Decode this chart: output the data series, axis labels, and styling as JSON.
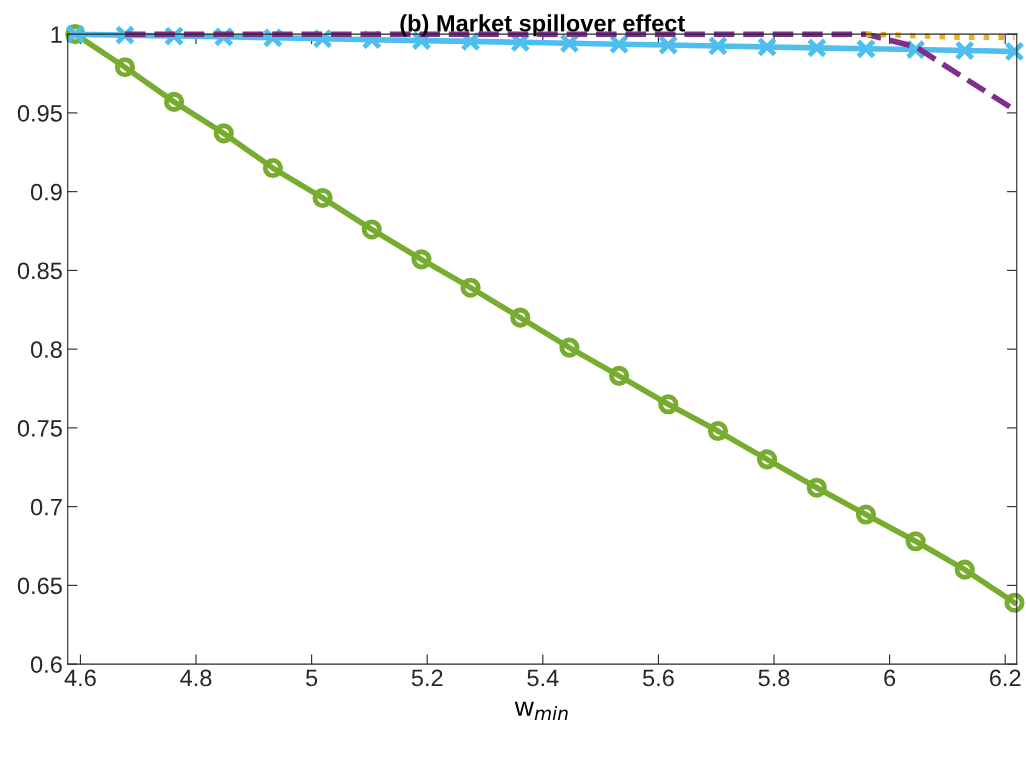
{
  "chart_data": {
    "type": "line",
    "title": "(b) Market spillover effect",
    "xlabel": "w$_{min}$",
    "x": [
      4.591,
      4.677,
      4.762,
      4.848,
      4.933,
      5.019,
      5.104,
      5.19,
      5.275,
      5.361,
      5.446,
      5.532,
      5.617,
      5.703,
      5.788,
      5.874,
      5.959,
      6.045,
      6.13,
      6.216
    ],
    "series": [
      {
        "color": "#77ac30",
        "line_style": "solid",
        "marker": "circle",
        "values": [
          1.0,
          0.979,
          0.957,
          0.937,
          0.915,
          0.896,
          0.876,
          0.857,
          0.839,
          0.82,
          0.801,
          0.783,
          0.765,
          0.748,
          0.73,
          0.712,
          0.695,
          0.678,
          0.66,
          0.639
        ]
      },
      {
        "color": "#4dbeee",
        "line_style": "solid",
        "marker": "cross",
        "values": [
          1.0,
          0.9994,
          0.9988,
          0.9983,
          0.9977,
          0.9971,
          0.9965,
          0.9959,
          0.9954,
          0.9948,
          0.9942,
          0.9936,
          0.9931,
          0.9925,
          0.9919,
          0.9913,
          0.9907,
          0.9902,
          0.9896,
          0.989
        ]
      },
      {
        "color": "#7e2f8e",
        "line_style": "dashed",
        "marker": "none",
        "values": [
          null,
          1,
          1,
          1,
          1,
          1,
          1,
          1,
          1,
          1,
          1,
          1,
          1,
          1,
          1,
          1,
          1,
          0.992,
          0.972,
          0.952
        ]
      },
      {
        "color": "#edb120",
        "line_style": "dotted",
        "marker": "none",
        "values": [
          null,
          null,
          null,
          null,
          null,
          null,
          null,
          null,
          null,
          null,
          null,
          null,
          null,
          null,
          null,
          null,
          1,
          0.999,
          0.998,
          0.998
        ]
      }
    ],
    "xlim": [
      4.578,
      6.22
    ],
    "xticks": [
      4.6,
      4.8,
      5,
      5.2,
      5.4,
      5.6,
      5.8,
      6,
      6.2
    ],
    "ylim": [
      0.6,
      1.0
    ],
    "yticks": [
      0.6,
      0.65,
      0.7,
      0.75,
      0.8,
      0.85,
      0.9,
      0.95,
      1
    ],
    "grid": false,
    "legend": false
  }
}
